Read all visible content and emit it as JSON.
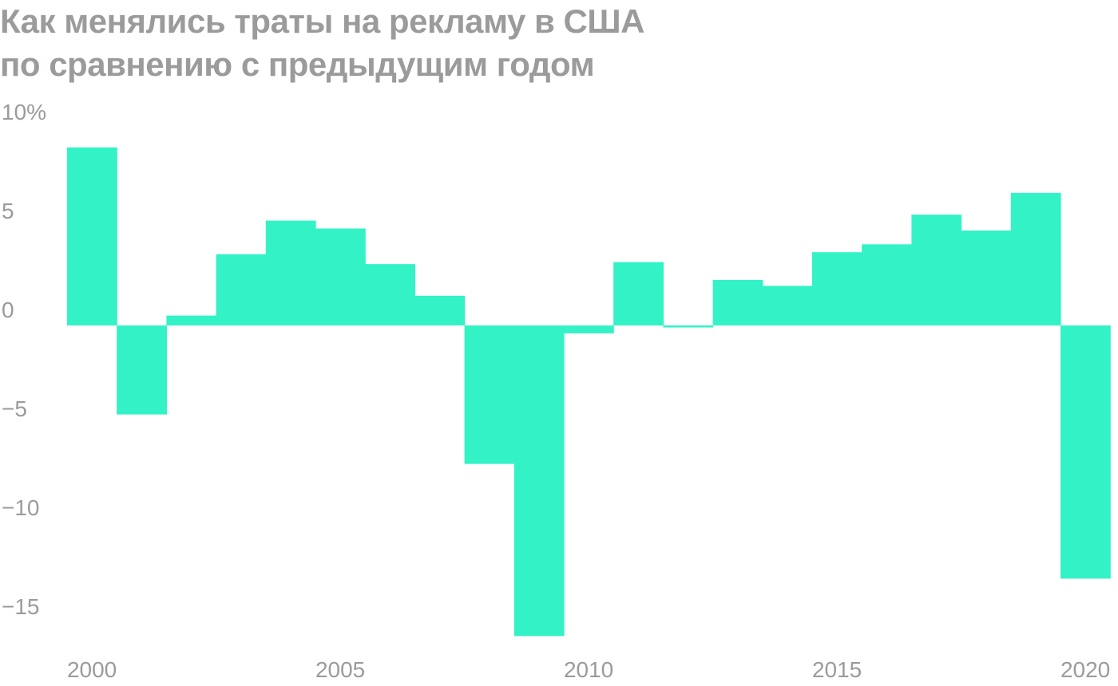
{
  "title_lines": [
    "Как менялись траты на рекламу в США",
    "по сравнению с предыдущим годом"
  ],
  "chart_data": {
    "type": "bar",
    "title": "Как менялись траты на рекламу в США по сравнению с предыдущим годом",
    "xlabel": "",
    "ylabel": "",
    "x": [
      2000,
      2001,
      2002,
      2003,
      2004,
      2005,
      2006,
      2007,
      2008,
      2009,
      2010,
      2011,
      2012,
      2013,
      2014,
      2015,
      2016,
      2017,
      2018,
      2019,
      2020
    ],
    "values": [
      9.0,
      -4.5,
      0.5,
      3.6,
      5.3,
      4.9,
      3.1,
      1.5,
      -7.0,
      -15.7,
      -0.4,
      3.2,
      -0.1,
      2.3,
      2.0,
      3.7,
      4.1,
      5.6,
      4.8,
      6.7,
      -12.8
    ],
    "ylim": [
      -16,
      10
    ],
    "yticks": [
      10,
      5,
      0,
      -5,
      -10,
      -15
    ],
    "ytick_labels": [
      "10%",
      "5",
      "0",
      "−5",
      "−10",
      "−15"
    ],
    "xticks": [
      2000,
      2005,
      2010,
      2015,
      2020
    ],
    "xtick_labels": [
      "2000",
      "2005",
      "2010",
      "2015",
      "2020"
    ],
    "grid": false,
    "legend": "none",
    "colors": {
      "bar": "#33f2c6",
      "text": "#9b9b9b"
    }
  }
}
